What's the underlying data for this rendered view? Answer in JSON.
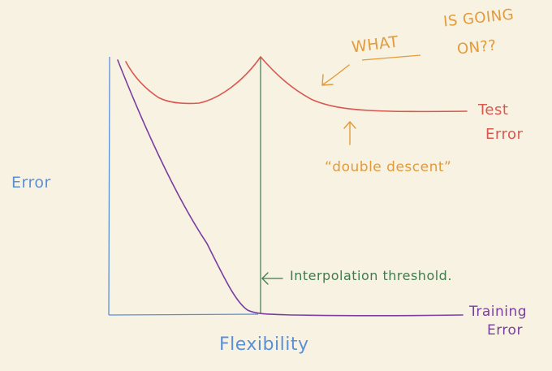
{
  "colors": {
    "background": "#f7f2e2",
    "axis_blue": "#5b8fd8",
    "test_red": "#d9584f",
    "train_purple": "#7a3ea0",
    "threshold_green": "#3f7a4f",
    "note_orange": "#e39a3a"
  },
  "labels": {
    "y_axis": "Error",
    "x_axis": "Flexibility",
    "test_error": [
      "Test",
      "Error"
    ],
    "training_error": [
      "Training",
      "Error"
    ],
    "threshold": "Interpolation threshold.",
    "double_descent": "“double descent”",
    "question": [
      "WHAT",
      "IS GOING",
      "ON??"
    ]
  },
  "icons": {
    "threshold_pointer": "left-arrow-icon",
    "question_pointer": "down-left-arrow-icon",
    "peak_pointer": "up-arrow-icon"
  }
}
